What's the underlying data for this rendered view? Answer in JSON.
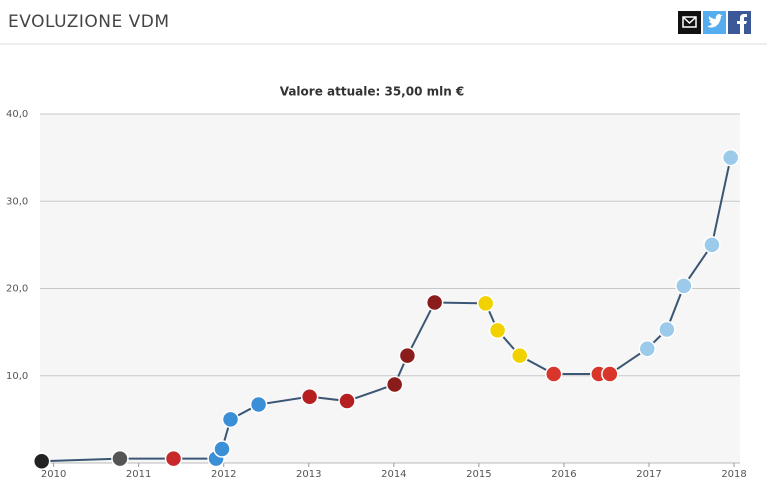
{
  "header": {
    "title": "EVOLUZIONE VDM"
  },
  "chart_data": {
    "type": "line",
    "subtitle": "Valore attuale: 35,00 mln €",
    "x": [
      2009.86,
      2010.78,
      2011.41,
      2011.91,
      2011.98,
      2012.08,
      2012.41,
      2013.01,
      2013.45,
      2014.01,
      2014.16,
      2014.48,
      2015.08,
      2015.22,
      2015.48,
      2015.88,
      2016.41,
      2016.54,
      2016.98,
      2017.21,
      2017.41,
      2017.74,
      2017.96
    ],
    "values": [
      0.2,
      0.5,
      0.5,
      0.5,
      1.6,
      5.0,
      6.7,
      7.6,
      7.1,
      9.0,
      12.3,
      18.4,
      18.3,
      15.2,
      12.3,
      10.2,
      10.2,
      10.2,
      13.1,
      15.3,
      20.3,
      25.0,
      35.0
    ],
    "color": "#3b5675",
    "marker_colors": [
      "#222222",
      "#555555",
      "#c8282a",
      "#3a8fd6",
      "#3a8fd6",
      "#3a8fd6",
      "#3a8fd6",
      "#b51f1f",
      "#b51f1f",
      "#8a1c1c",
      "#8a1c1c",
      "#8a1c1c",
      "#f1d100",
      "#f1d100",
      "#f1d100",
      "#d9362b",
      "#d9362b",
      "#d9362b",
      "#9ccaea",
      "#9ccaea",
      "#9ccaea",
      "#9ccaea",
      "#9ccaea"
    ],
    "xlim": [
      2009.84,
      2018.07
    ],
    "xticks": [
      2010,
      2011,
      2012,
      2013,
      2014,
      2015,
      2016,
      2017,
      2018
    ],
    "ylim": [
      0,
      40
    ],
    "yticks": [
      {
        "value": 10,
        "label": "10,0"
      },
      {
        "value": 20,
        "label": "20,0"
      },
      {
        "value": 30,
        "label": "30,0"
      },
      {
        "value": 40,
        "label": "40,0"
      }
    ],
    "grid": true
  }
}
